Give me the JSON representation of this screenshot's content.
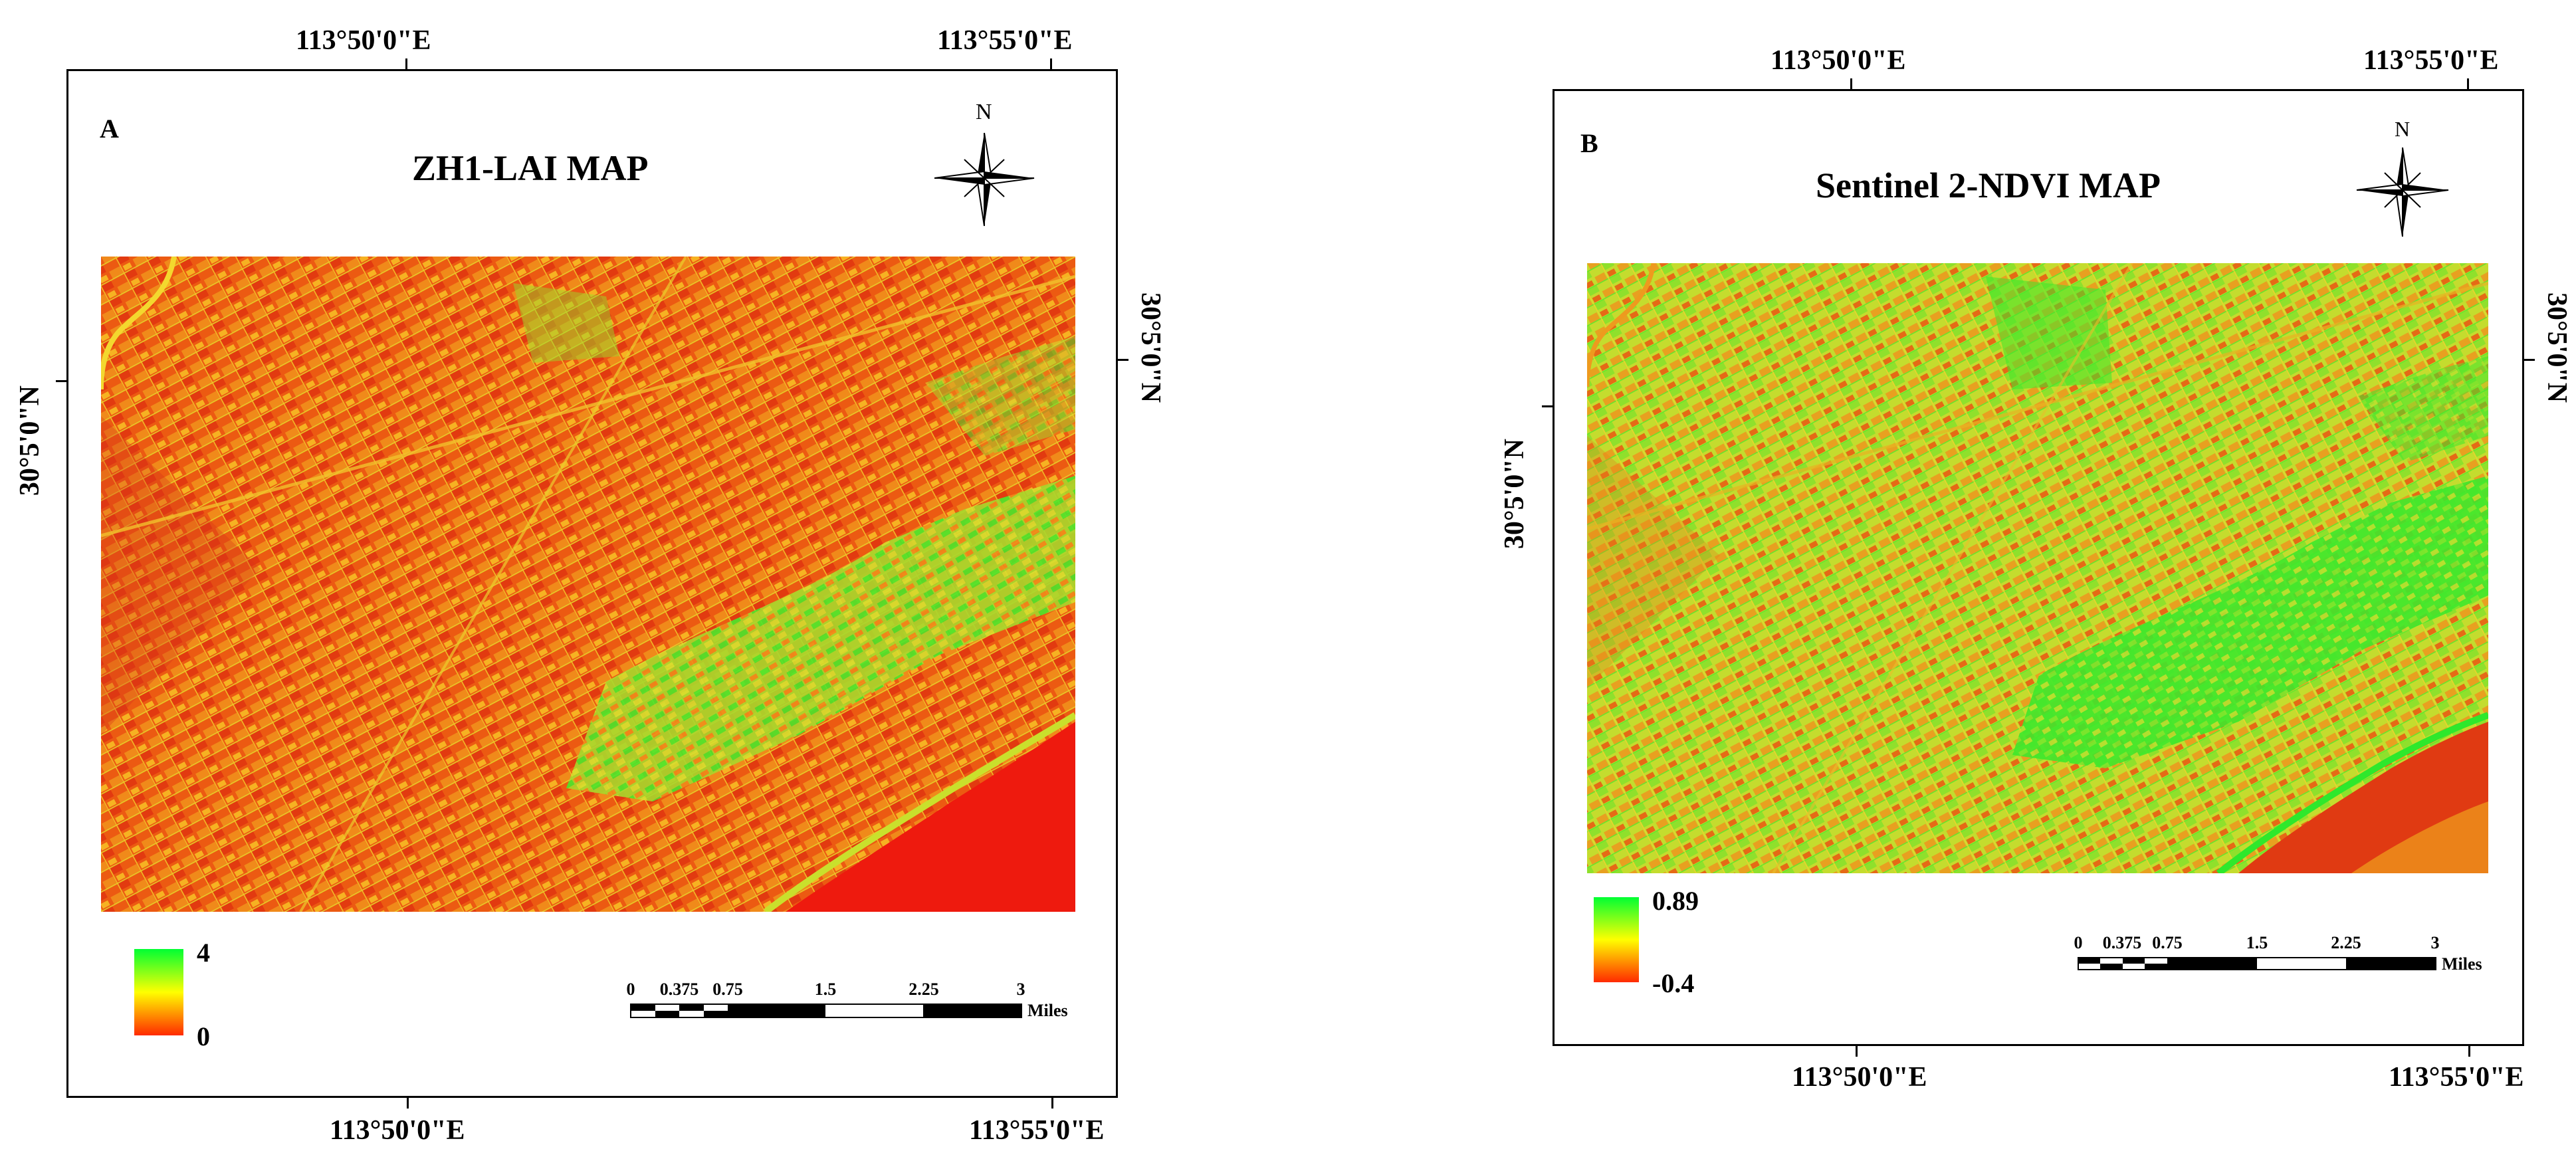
{
  "maps": [
    {
      "panel_letter": "A",
      "title": "ZH1-LAI MAP",
      "top_lon_labels": [
        "113°50'0\"E",
        "113°55'0\"E"
      ],
      "bottom_lon_labels": [
        "113°50'0\"E",
        "113°55'0\"E"
      ],
      "left_lat_label": "30°5'0\"N",
      "right_lat_label": "30°5'0\"N",
      "north_label": "N",
      "legend": {
        "max": "4",
        "min": "0",
        "colors": [
          "#00ff33",
          "#ffff00",
          "#ff2a00"
        ]
      },
      "scale_bar": {
        "labels": [
          "0",
          "0.375",
          "0.75",
          "1.5",
          "2.25",
          "3"
        ],
        "unit": "Miles"
      },
      "raster_mean_colors": [
        "#e8440e",
        "#f2831a",
        "#c8d22a",
        "#6bdc2c"
      ]
    },
    {
      "panel_letter": "B",
      "title": "Sentinel 2-NDVI MAP",
      "top_lon_labels": [
        "113°50'0\"E",
        "113°55'0\"E"
      ],
      "bottom_lon_labels": [
        "113°50'0\"E",
        "113°55'0\"E"
      ],
      "left_lat_label": "30°5'0\"N",
      "right_lat_label": "30°5'0\"N",
      "north_label": "N",
      "legend": {
        "max": "0.89",
        "min": "-0.4",
        "colors": [
          "#00ff33",
          "#ffff00",
          "#ff2a00"
        ]
      },
      "scale_bar": {
        "labels": [
          "0",
          "0.375",
          "0.75",
          "1.5",
          "2.25",
          "3"
        ],
        "unit": "Miles"
      },
      "raster_mean_colors": [
        "#d8d830",
        "#a6e02c",
        "#f09a1c",
        "#58e62a"
      ]
    }
  ]
}
